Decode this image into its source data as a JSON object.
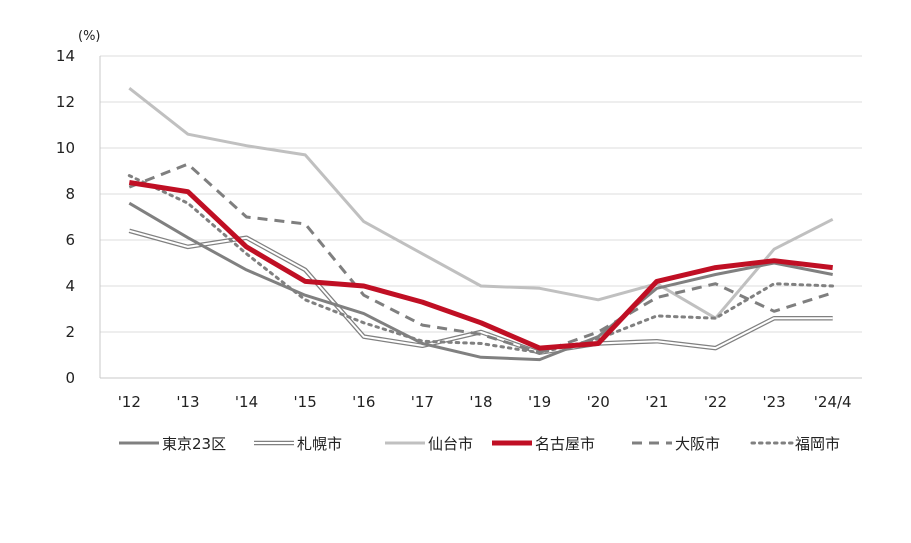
{
  "chart_data": {
    "type": "line",
    "unit_label": "(%)",
    "categories": [
      "'12",
      "'13",
      "'14",
      "'15",
      "'16",
      "'17",
      "'18",
      "'19",
      "'20",
      "'21",
      "'22",
      "'23",
      "'24/4"
    ],
    "ylim": [
      0,
      14
    ],
    "yticks": [
      0,
      2,
      4,
      6,
      8,
      10,
      12,
      14
    ],
    "grid": true,
    "legend_position": "bottom",
    "series": [
      {
        "name": "東京23区",
        "style": "solid",
        "color": "#808080",
        "values": [
          7.6,
          6.1,
          4.7,
          3.6,
          2.8,
          1.5,
          0.9,
          0.8,
          1.8,
          3.9,
          4.5,
          5.0,
          4.5
        ]
      },
      {
        "name": "札幌市",
        "style": "double",
        "color": "#808080",
        "values": [
          6.4,
          5.7,
          6.1,
          4.7,
          1.8,
          1.4,
          2.0,
          1.1,
          1.5,
          1.6,
          1.3,
          2.6,
          2.6
        ]
      },
      {
        "name": "仙台市",
        "style": "solid",
        "color": "#c0c0c0",
        "values": [
          12.6,
          10.6,
          10.1,
          9.7,
          6.8,
          5.4,
          4.0,
          3.9,
          3.4,
          4.1,
          2.6,
          5.6,
          6.9
        ]
      },
      {
        "name": "名古屋市",
        "style": "solid",
        "color": "#c00f24",
        "values": [
          8.5,
          8.1,
          5.7,
          4.2,
          4.0,
          3.3,
          2.4,
          1.3,
          1.5,
          4.2,
          4.8,
          5.1,
          4.8
        ]
      },
      {
        "name": "大阪市",
        "style": "dashed",
        "color": "#7f7f7f",
        "values": [
          8.3,
          9.3,
          7.0,
          6.7,
          3.6,
          2.3,
          1.9,
          1.1,
          2.0,
          3.5,
          4.1,
          2.9,
          3.7
        ]
      },
      {
        "name": "福岡市",
        "style": "dotted",
        "color": "#808080",
        "values": [
          8.8,
          7.6,
          5.4,
          3.4,
          2.4,
          1.6,
          1.5,
          1.1,
          1.7,
          2.7,
          2.6,
          4.1,
          4.0
        ]
      }
    ]
  }
}
